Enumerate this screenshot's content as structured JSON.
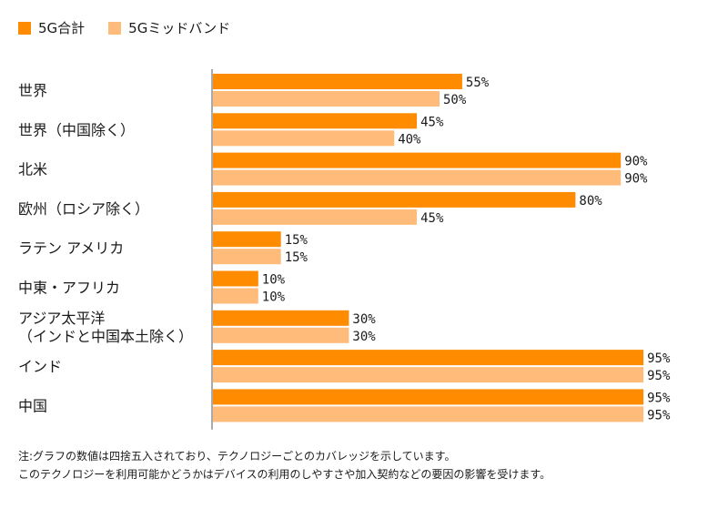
{
  "legend": [
    {
      "label": "5G合計",
      "color": "#ff8c00"
    },
    {
      "label": "5Gミッドバンド",
      "color": "#ffbb7a"
    }
  ],
  "chart_data": {
    "type": "bar",
    "orientation": "horizontal",
    "categories": [
      [
        "世界"
      ],
      [
        "世界（中国除く）"
      ],
      [
        "北米"
      ],
      [
        "欧州（ロシア除く）"
      ],
      [
        "ラテン アメリカ"
      ],
      [
        "中東・アフリカ"
      ],
      [
        "アジア太平洋",
        "（インドと中国本土除く）"
      ],
      [
        "インド"
      ],
      [
        "中国"
      ]
    ],
    "series": [
      {
        "name": "5G合計",
        "values": [
          55,
          45,
          90,
          80,
          15,
          10,
          30,
          95,
          95
        ]
      },
      {
        "name": "5Gミッドバンド",
        "values": [
          50,
          40,
          90,
          45,
          15,
          10,
          30,
          95,
          95
        ]
      }
    ],
    "value_suffix": "%",
    "xlim": [
      0,
      100
    ],
    "grid": false
  },
  "footnote": [
    "注:グラフの数値は四捨五入されており、テクノロジーごとのカバレッジを示しています。",
    "このテクノロジーを利用可能かどうかはデバイスの利用のしやすさや加入契約などの要因の影響を受けます。"
  ]
}
